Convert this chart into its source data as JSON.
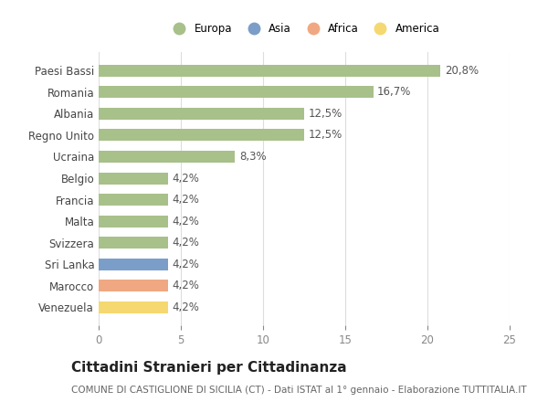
{
  "categories": [
    "Venezuela",
    "Marocco",
    "Sri Lanka",
    "Svizzera",
    "Malta",
    "Francia",
    "Belgio",
    "Ucraina",
    "Regno Unito",
    "Albania",
    "Romania",
    "Paesi Bassi"
  ],
  "values": [
    4.2,
    4.2,
    4.2,
    4.2,
    4.2,
    4.2,
    4.2,
    8.3,
    12.5,
    12.5,
    16.7,
    20.8
  ],
  "labels": [
    "4,2%",
    "4,2%",
    "4,2%",
    "4,2%",
    "4,2%",
    "4,2%",
    "4,2%",
    "8,3%",
    "12,5%",
    "12,5%",
    "16,7%",
    "20,8%"
  ],
  "colors": [
    "#F5D870",
    "#F0A882",
    "#7B9EC8",
    "#A8C08A",
    "#A8C08A",
    "#A8C08A",
    "#A8C08A",
    "#A8C08A",
    "#A8C08A",
    "#A8C08A",
    "#A8C08A",
    "#A8C08A"
  ],
  "legend": [
    {
      "label": "Europa",
      "color": "#A8C08A"
    },
    {
      "label": "Asia",
      "color": "#7B9EC8"
    },
    {
      "label": "Africa",
      "color": "#F0A882"
    },
    {
      "label": "America",
      "color": "#F5D870"
    }
  ],
  "xlim": [
    0,
    25
  ],
  "xticks": [
    0,
    5,
    10,
    15,
    20,
    25
  ],
  "title": "Cittadini Stranieri per Cittadinanza",
  "subtitle": "COMUNE DI CASTIGLIONE DI SICILIA (CT) - Dati ISTAT al 1° gennaio - Elaborazione TUTTITALIA.IT",
  "background_color": "#ffffff",
  "grid_color": "#dddddd",
  "bar_height": 0.55,
  "label_fontsize": 8.5,
  "tick_fontsize": 8.5,
  "title_fontsize": 11,
  "subtitle_fontsize": 7.5
}
